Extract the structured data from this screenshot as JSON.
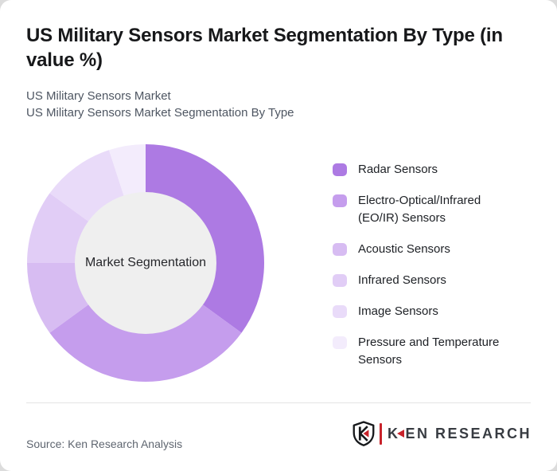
{
  "header": {
    "title": "US Military Sensors Market Segmentation By Type (in value %)",
    "subtitle_line1": "US Military Sensors Market",
    "subtitle_line2": "US Military Sensors Market Segmentation By Type"
  },
  "chart_data": {
    "type": "pie",
    "subtype": "donut",
    "title": "US Military Sensors Market Segmentation By Type (in value %)",
    "center_label": "Market Segmentation",
    "categories": [
      "Radar Sensors",
      "Electro-Optical/Infrared (EO/IR) Sensors",
      "Acoustic Sensors",
      "Infrared Sensors",
      "Image Sensors",
      "Pressure and Temperature Sensors"
    ],
    "values": [
      35,
      30,
      10,
      10,
      10,
      5
    ],
    "unit": "value %",
    "colors": [
      "#ad7ae3",
      "#c59ded",
      "#d7bcf2",
      "#e1cdf6",
      "#e9dbf9",
      "#f3ecfc"
    ],
    "center_fill": "#efefef",
    "start_angle_deg": 0,
    "direction": "clockwise",
    "legend_position": "right",
    "outer_radius_px": 149,
    "inner_radius_px": 88
  },
  "footer": {
    "source": "Source: Ken Research Analysis",
    "brand_k": "K",
    "brand_rest": "EN RESEARCH"
  },
  "colors": {
    "accent_red": "#c8232b",
    "slice_dark": "#ad7ae3",
    "page_background": "#dcdcdc",
    "card_background": "#ffffff"
  }
}
